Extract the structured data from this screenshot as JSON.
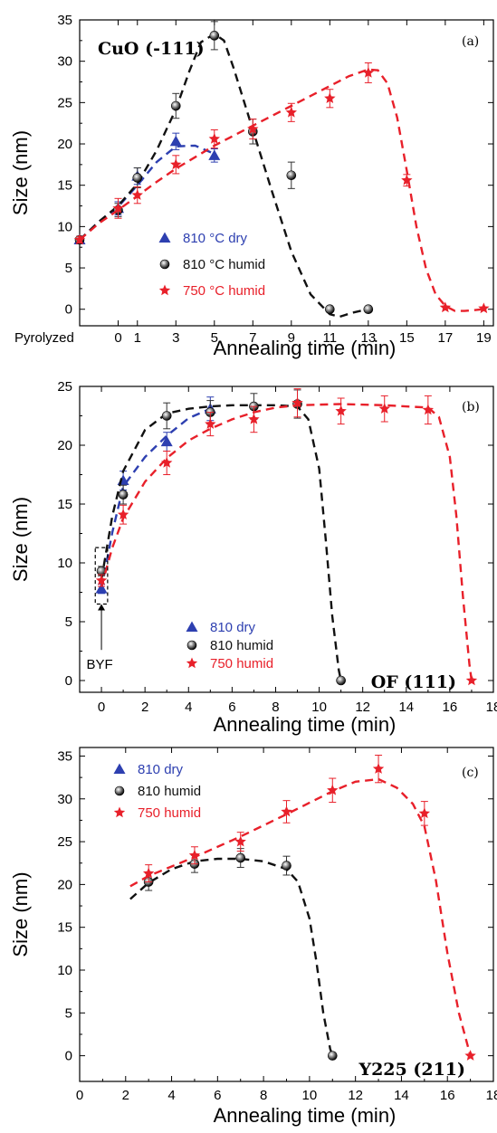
{
  "colors": {
    "dry_810": "#2d3fb0",
    "humid_810": "#111111",
    "humid_750": "#e8202a"
  },
  "chart_data": [
    {
      "type": "line",
      "panel_label": "(a)",
      "annotation": "CuO (-111)",
      "xlabel": "Annealing time (min)",
      "ylabel": "Size (nm)",
      "xlim": [
        -2,
        19.5
      ],
      "ylim": [
        -2,
        35
      ],
      "x_ticks": [
        -2,
        0,
        1,
        3,
        5,
        7,
        9,
        11,
        13,
        15,
        17,
        19
      ],
      "x_tick_labels": [
        "Pyrolyzed",
        "0",
        "1",
        "3",
        "5",
        "7",
        "9",
        "11",
        "13",
        "15",
        "17",
        "19"
      ],
      "y_ticks": [
        0,
        5,
        10,
        15,
        20,
        25,
        30,
        35
      ],
      "grid": false,
      "legend": "lower-left",
      "series": [
        {
          "name": "810 °C dry",
          "marker": "triangle",
          "color_key": "dry_810",
          "x": [
            -2,
            0,
            1,
            3,
            5
          ],
          "y": [
            8.4,
            12.2,
            16.1,
            20.3,
            18.6
          ],
          "err": [
            0.4,
            0.8,
            1.0,
            1.0,
            0.8
          ],
          "fit_x": [
            -2,
            -1,
            0,
            1,
            2,
            3,
            4,
            5
          ],
          "fit_y": [
            8.4,
            10.6,
            12.4,
            15.0,
            17.8,
            19.7,
            19.8,
            18.8
          ]
        },
        {
          "name": "810 °C humid",
          "marker": "sphere",
          "color_key": "humid_810",
          "x": [
            -2,
            0,
            1,
            3,
            5,
            7,
            9,
            11,
            13
          ],
          "y": [
            8.4,
            12.0,
            15.9,
            24.6,
            33.1,
            21.5,
            16.2,
            0.0,
            0.0
          ],
          "err": [
            0.4,
            0.8,
            1.2,
            1.5,
            1.7,
            1.5,
            1.6,
            0.3,
            0.3
          ],
          "fit_x": [
            -2,
            -1,
            0,
            1,
            2,
            3,
            3.7,
            4.3,
            5,
            5.5,
            6,
            7,
            8,
            9,
            10,
            11,
            11.5,
            12.2,
            13
          ],
          "fit_y": [
            8.4,
            10.6,
            12.5,
            15.2,
            19.2,
            24.2,
            28.8,
            32.3,
            33.3,
            32.5,
            29.2,
            21.7,
            14.2,
            7.0,
            1.8,
            -0.6,
            -0.9,
            -0.4,
            0.0
          ]
        },
        {
          "name": "750 °C humid",
          "marker": "star",
          "color_key": "humid_750",
          "x": [
            -2,
            0,
            1,
            3,
            5,
            7,
            9,
            11,
            13,
            15,
            17,
            19
          ],
          "y": [
            8.4,
            12.2,
            13.8,
            17.5,
            20.6,
            21.8,
            23.8,
            25.5,
            28.6,
            15.6,
            0.2,
            0.1
          ],
          "err": [
            0.4,
            1.2,
            1.0,
            1.1,
            1.1,
            1.2,
            1.1,
            1.1,
            1.2,
            0.7,
            0.2,
            0.2
          ],
          "fit_x": [
            -2,
            -1,
            0,
            1,
            2,
            3,
            5,
            7,
            9,
            11,
            12,
            13,
            13.5,
            14,
            14.5,
            15,
            15.5,
            16,
            16.5,
            17,
            17.5,
            18,
            19
          ],
          "fit_y": [
            8.4,
            10.4,
            12.0,
            13.7,
            15.4,
            17.0,
            19.8,
            22.2,
            24.6,
            27.0,
            28.2,
            29.0,
            28.9,
            27.3,
            23.2,
            16.8,
            10.0,
            4.9,
            1.8,
            0.4,
            -0.2,
            -0.2,
            0.0
          ]
        }
      ]
    },
    {
      "type": "line",
      "panel_label": "(b)",
      "annotation": "OF (111)",
      "box_label": "BYF",
      "xlabel": "Annealing time (min)",
      "ylabel": "Size (nm)",
      "xlim": [
        -1,
        18
      ],
      "ylim": [
        -1,
        25
      ],
      "x_ticks": [
        0,
        2,
        4,
        6,
        8,
        10,
        12,
        14,
        16,
        18
      ],
      "y_ticks": [
        0,
        5,
        10,
        15,
        20,
        25
      ],
      "grid": false,
      "legend": "lower-center",
      "series": [
        {
          "name": "810 dry",
          "marker": "triangle",
          "color_key": "dry_810",
          "x": [
            0,
            1,
            3,
            5
          ],
          "y": [
            7.8,
            17.0,
            20.3,
            23.1
          ],
          "err": [
            0.4,
            0.8,
            0.8,
            1.0
          ],
          "fit_x": [
            0,
            0.5,
            1,
            2,
            3,
            4,
            5
          ],
          "fit_y": [
            7.8,
            12.6,
            16.5,
            19.0,
            20.8,
            22.3,
            23.1
          ]
        },
        {
          "name": "810 humid",
          "marker": "sphere",
          "color_key": "humid_810",
          "x": [
            0,
            1,
            3,
            5,
            7,
            9,
            11
          ],
          "y": [
            9.3,
            15.8,
            22.5,
            22.8,
            23.3,
            23.5,
            0.0
          ],
          "err": [
            0.4,
            0.8,
            1.1,
            1.0,
            1.1,
            1.2,
            0.2
          ],
          "fit_x": [
            0,
            0.5,
            1,
            2,
            3,
            4,
            5,
            6,
            7,
            8,
            9,
            9.5,
            10,
            10.3,
            10.6,
            10.9,
            11
          ],
          "fit_y": [
            8.6,
            14.0,
            17.8,
            21.3,
            22.7,
            23.1,
            23.3,
            23.4,
            23.4,
            23.4,
            23.3,
            22.2,
            18.0,
            12.0,
            5.5,
            0.9,
            0.0
          ]
        },
        {
          "name": "750 humid",
          "marker": "star",
          "color_key": "humid_750",
          "x": [
            0,
            1,
            3,
            5,
            7,
            9,
            11,
            13,
            15,
            17
          ],
          "y": [
            8.5,
            14.1,
            18.5,
            21.8,
            22.2,
            23.6,
            22.9,
            23.1,
            23.0,
            0.0
          ],
          "err": [
            0.5,
            0.8,
            1.0,
            1.0,
            1.1,
            1.2,
            1.1,
            1.1,
            1.2,
            0.2
          ],
          "fit_x": [
            0,
            0.5,
            1,
            2,
            3,
            4,
            5,
            6,
            7,
            8,
            9,
            11,
            13,
            15,
            15.5,
            16,
            16.3,
            16.6,
            16.9,
            17
          ],
          "fit_y": [
            8.0,
            11.3,
            13.8,
            16.9,
            18.9,
            20.4,
            21.4,
            22.2,
            22.8,
            23.2,
            23.4,
            23.5,
            23.4,
            23.2,
            22.4,
            19.0,
            14.0,
            7.2,
            1.4,
            0.0
          ]
        }
      ]
    },
    {
      "type": "line",
      "panel_label": "(c)",
      "annotation": "Y225 (211)",
      "xlabel": "Annealing time (min)",
      "ylabel": "Size (nm)",
      "xlim": [
        0,
        18
      ],
      "ylim": [
        -3,
        36
      ],
      "x_ticks": [
        0,
        2,
        4,
        6,
        8,
        10,
        12,
        14,
        16,
        18
      ],
      "y_ticks": [
        0,
        5,
        10,
        15,
        20,
        25,
        30,
        35
      ],
      "grid": false,
      "legend": "upper-left",
      "series": [
        {
          "name": "810 dry",
          "marker": "triangle",
          "color_key": "dry_810",
          "x": [],
          "y": [],
          "err": [],
          "fit_x": [],
          "fit_y": []
        },
        {
          "name": "810 humid",
          "marker": "sphere",
          "color_key": "humid_810",
          "x": [
            3,
            5,
            7,
            9,
            11
          ],
          "y": [
            20.3,
            22.4,
            23.1,
            22.2,
            0.0
          ],
          "err": [
            1.0,
            1.0,
            1.1,
            1.1,
            0.3
          ],
          "fit_x": [
            2.2,
            3,
            4,
            5,
            6,
            7,
            8,
            9,
            9.5,
            10,
            10.3,
            10.6,
            10.9,
            11
          ],
          "fit_y": [
            18.3,
            20.2,
            21.8,
            22.7,
            23.0,
            23.0,
            22.7,
            21.8,
            20.3,
            16.0,
            11.0,
            5.0,
            0.8,
            0.0
          ]
        },
        {
          "name": "750 humid",
          "marker": "star",
          "color_key": "humid_750",
          "x": [
            3,
            5,
            7,
            9,
            11,
            13,
            15,
            17
          ],
          "y": [
            21.3,
            23.4,
            25.0,
            28.5,
            31.0,
            33.5,
            28.3,
            0.0
          ],
          "err": [
            1.0,
            1.0,
            1.1,
            1.3,
            1.4,
            1.6,
            1.4,
            0.2
          ],
          "fit_x": [
            2.2,
            3,
            5,
            7,
            9,
            11,
            12,
            13,
            13.8,
            14.5,
            15,
            15.5,
            16,
            16.5,
            17
          ],
          "fit_y": [
            19.8,
            21.0,
            23.2,
            25.6,
            28.2,
            30.9,
            32.0,
            32.3,
            31.3,
            29.4,
            26.8,
            20.5,
            12.0,
            5.0,
            0.0
          ]
        }
      ]
    }
  ]
}
